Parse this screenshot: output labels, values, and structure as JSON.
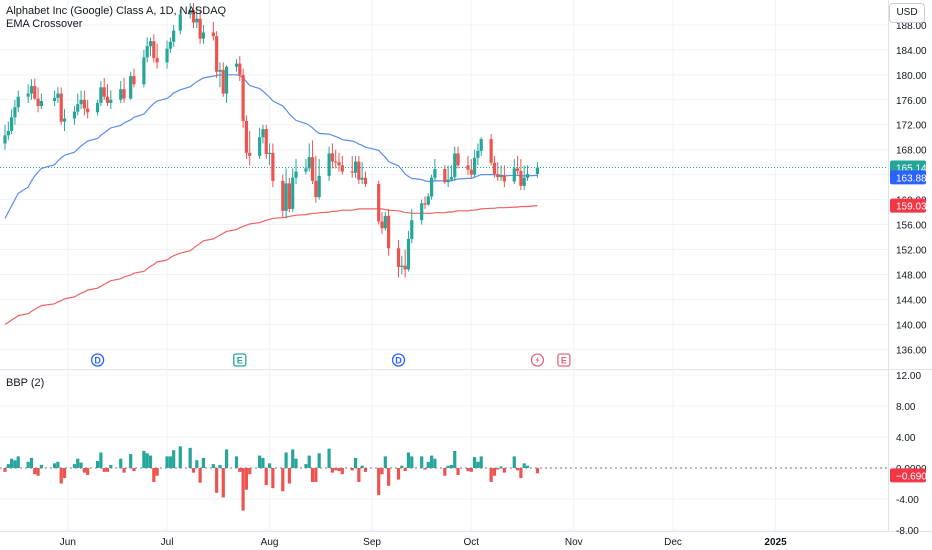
{
  "header": {
    "title": "Alphabet Inc (Google) Class A, 1D, NASDAQ",
    "indicator": "EMA Crossover",
    "currency": "USD"
  },
  "colors": {
    "up": "#26a69a",
    "down": "#ef5350",
    "ema_fast": "#5b8def",
    "ema_slow": "#f06262",
    "grid": "#f0f3fa",
    "axis_text": "#131722"
  },
  "chart_data": [
    {
      "type": "candlestick",
      "title": "Alphabet Inc (Google) Class A, 1D, NASDAQ",
      "ylim": [
        133,
        192
      ],
      "y_ticks": [
        "136.00",
        "140.00",
        "144.00",
        "148.00",
        "152.00",
        "156.00",
        "160.00",
        "164.00",
        "168.00",
        "172.00",
        "176.00",
        "180.00",
        "184.00",
        "188.00"
      ],
      "x_ticks": [
        "Jun",
        "Jul",
        "Aug",
        "Sep",
        "Oct",
        "Nov",
        "Dec",
        "2025"
      ],
      "x": [
        "2024-05-13",
        "2024-05-14",
        "2024-05-15",
        "2024-05-16",
        "2024-05-17",
        "2024-05-20",
        "2024-05-21",
        "2024-05-22",
        "2024-05-23",
        "2024-05-24",
        "2024-05-28",
        "2024-05-29",
        "2024-05-30",
        "2024-05-31",
        "2024-06-03",
        "2024-06-04",
        "2024-06-05",
        "2024-06-06",
        "2024-06-07",
        "2024-06-10",
        "2024-06-11",
        "2024-06-12",
        "2024-06-13",
        "2024-06-14",
        "2024-06-17",
        "2024-06-18",
        "2024-06-20",
        "2024-06-21",
        "2024-06-24",
        "2024-06-25",
        "2024-06-26",
        "2024-06-27",
        "2024-06-28",
        "2024-07-01",
        "2024-07-02",
        "2024-07-03",
        "2024-07-05",
        "2024-07-08",
        "2024-07-09",
        "2024-07-10",
        "2024-07-11",
        "2024-07-12",
        "2024-07-15",
        "2024-07-16",
        "2024-07-17",
        "2024-07-18",
        "2024-07-19",
        "2024-07-22",
        "2024-07-23",
        "2024-07-24",
        "2024-07-25",
        "2024-07-26",
        "2024-07-29",
        "2024-07-30",
        "2024-07-31",
        "2024-08-01",
        "2024-08-02",
        "2024-08-05",
        "2024-08-06",
        "2024-08-07",
        "2024-08-08",
        "2024-08-09",
        "2024-08-12",
        "2024-08-13",
        "2024-08-14",
        "2024-08-15",
        "2024-08-16",
        "2024-08-19",
        "2024-08-20",
        "2024-08-21",
        "2024-08-22",
        "2024-08-23",
        "2024-08-26",
        "2024-08-27",
        "2024-08-28",
        "2024-08-29",
        "2024-08-30",
        "2024-09-03",
        "2024-09-04",
        "2024-09-05",
        "2024-09-06",
        "2024-09-09",
        "2024-09-10",
        "2024-09-11",
        "2024-09-12",
        "2024-09-13",
        "2024-09-16",
        "2024-09-17",
        "2024-09-18",
        "2024-09-19",
        "2024-09-20",
        "2024-09-23",
        "2024-09-24",
        "2024-09-25",
        "2024-09-26",
        "2024-09-27",
        "2024-09-30",
        "2024-10-01",
        "2024-10-02",
        "2024-10-03",
        "2024-10-04",
        "2024-10-07",
        "2024-10-08",
        "2024-10-09",
        "2024-10-10",
        "2024-10-11",
        "2024-10-14",
        "2024-10-15",
        "2024-10-16",
        "2024-10-17",
        "2024-10-18",
        "2024-10-21"
      ],
      "open": [
        169.0,
        170.3,
        171.0,
        173.2,
        174.8,
        176.5,
        177.0,
        178.2,
        176.2,
        175.0,
        175.8,
        176.3,
        177.0,
        172.5,
        173.0,
        174.1,
        175.3,
        176.0,
        174.6,
        174.0,
        175.5,
        178.0,
        176.5,
        175.5,
        176.0,
        177.7,
        176.2,
        179.8,
        178.5,
        182.8,
        184.6,
        185.4,
        182.7,
        182.0,
        184.2,
        185.3,
        187.1,
        189.7,
        190.4,
        188.4,
        189.0,
        185.8,
        186.8,
        186.2,
        180.5,
        180.8,
        177.0,
        181.3,
        181.8,
        180.0,
        172.6,
        167.5,
        167.0,
        170.0,
        171.3,
        167.3,
        167.5,
        163.0,
        158.2,
        162.6,
        158.5,
        163.5,
        164.5,
        165.0,
        166.8,
        163.0,
        160.4,
        163.8,
        167.4,
        166.1,
        166.0,
        165.5,
        164.5,
        164.3,
        166.1,
        163.2,
        163.5,
        162.5,
        156.5,
        155.4,
        157.4,
        152.2,
        149.2,
        149.4,
        148.8,
        153.7,
        156.7,
        159.4,
        159.2,
        160.5,
        163.5,
        164.9,
        162.8,
        163.2,
        163.6,
        167.4,
        165.5,
        164.8,
        164.0,
        166.7,
        167.8,
        169.7,
        165.9,
        164.1,
        163.6,
        163.9,
        162.9,
        165.0,
        164.6,
        162.2,
        163.5,
        164.1
      ],
      "high": [
        172.0,
        172.5,
        174.5,
        176.0,
        177.5,
        178.5,
        179.3,
        179.4,
        178.0,
        177.0,
        177.5,
        178.0,
        178.0,
        174.5,
        175.0,
        177.0,
        177.5,
        177.5,
        176.0,
        176.0,
        179.0,
        179.5,
        178.5,
        177.5,
        179.0,
        179.5,
        180.5,
        181.0,
        184.0,
        186.0,
        186.0,
        186.5,
        185.0,
        185.5,
        186.0,
        188.0,
        190.5,
        191.5,
        191.5,
        191.0,
        190.5,
        188.0,
        188.5,
        187.0,
        182.0,
        182.0,
        181.5,
        182.5,
        183.0,
        181.0,
        173.5,
        171.0,
        171.5,
        172.0,
        172.0,
        169.0,
        169.0,
        164.0,
        165.0,
        163.5,
        165.0,
        166.5,
        166.5,
        169.0,
        169.5,
        167.0,
        166.5,
        168.5,
        169.0,
        168.0,
        167.5,
        167.0,
        167.0,
        167.0,
        167.0,
        166.0,
        164.5,
        163.0,
        158.0,
        158.0,
        158.5,
        153.5,
        151.0,
        152.0,
        155.0,
        158.5,
        160.0,
        160.5,
        161.0,
        164.0,
        166.5,
        165.5,
        165.5,
        165.5,
        168.5,
        168.5,
        167.0,
        166.5,
        168.0,
        169.0,
        170.0,
        170.5,
        167.0,
        166.0,
        165.5,
        165.5,
        166.5,
        167.0,
        166.5,
        165.5,
        165.5,
        166.0
      ],
      "low": [
        168.0,
        169.5,
        170.5,
        172.0,
        174.0,
        175.5,
        176.0,
        176.0,
        174.0,
        174.5,
        175.0,
        175.5,
        172.0,
        171.0,
        172.0,
        173.5,
        174.5,
        173.5,
        173.0,
        173.5,
        175.0,
        176.0,
        175.0,
        174.5,
        175.5,
        175.5,
        176.0,
        178.0,
        178.0,
        182.0,
        183.0,
        182.0,
        181.0,
        181.0,
        183.5,
        184.5,
        186.5,
        189.0,
        187.5,
        187.5,
        185.0,
        185.0,
        185.5,
        179.5,
        178.0,
        176.5,
        175.5,
        180.5,
        179.0,
        171.5,
        166.5,
        165.5,
        166.5,
        169.0,
        166.5,
        165.5,
        162.0,
        157.0,
        157.0,
        158.0,
        158.0,
        162.5,
        164.0,
        164.5,
        162.5,
        159.5,
        160.0,
        163.0,
        165.0,
        165.0,
        164.5,
        164.0,
        163.5,
        163.5,
        162.5,
        162.5,
        162.0,
        156.0,
        154.5,
        155.0,
        151.0,
        147.5,
        148.0,
        147.5,
        148.5,
        153.0,
        156.0,
        158.5,
        159.0,
        160.0,
        163.0,
        162.5,
        162.0,
        163.0,
        163.0,
        165.0,
        164.0,
        163.5,
        163.5,
        165.5,
        167.0,
        165.5,
        163.5,
        163.0,
        163.0,
        162.0,
        162.5,
        164.0,
        161.5,
        161.5,
        163.0,
        163.5
      ],
      "close": [
        170.3,
        171.0,
        173.2,
        174.8,
        176.5,
        177.0,
        178.2,
        176.2,
        175.0,
        175.8,
        176.3,
        177.0,
        172.5,
        173.0,
        174.1,
        175.3,
        176.0,
        174.6,
        174.0,
        175.5,
        178.0,
        176.5,
        175.5,
        176.0,
        177.7,
        176.2,
        179.8,
        178.5,
        182.8,
        184.6,
        185.4,
        182.7,
        182.0,
        184.2,
        185.3,
        187.1,
        189.7,
        190.4,
        188.4,
        189.0,
        185.8,
        186.8,
        186.2,
        180.5,
        180.8,
        177.0,
        181.3,
        181.8,
        180.0,
        172.6,
        167.5,
        167.0,
        170.0,
        171.3,
        167.3,
        167.5,
        163.0,
        158.2,
        162.6,
        158.5,
        163.5,
        164.5,
        165.0,
        166.8,
        163.0,
        160.4,
        163.8,
        167.4,
        166.1,
        166.0,
        165.5,
        164.5,
        164.3,
        166.1,
        163.2,
        163.5,
        162.5,
        156.5,
        155.4,
        157.4,
        152.2,
        149.2,
        149.4,
        148.8,
        153.7,
        156.7,
        159.4,
        159.2,
        160.5,
        163.5,
        164.9,
        162.8,
        163.2,
        163.6,
        167.4,
        165.5,
        164.8,
        164.0,
        166.7,
        167.8,
        169.7,
        165.9,
        164.1,
        163.6,
        163.9,
        162.9,
        165.0,
        164.6,
        162.2,
        163.5,
        164.1,
        165.14
      ],
      "series": [
        {
          "name": "",
          "color": "#5b8def",
          "values": [
            157.0,
            158.0,
            159.0,
            160.0,
            161.0,
            162.0,
            163.0,
            163.8,
            164.4,
            165.0,
            165.6,
            166.2,
            166.7,
            167.1,
            167.6,
            168.1,
            168.6,
            169.0,
            169.4,
            169.8,
            170.3,
            170.7,
            171.1,
            171.5,
            171.9,
            172.3,
            172.8,
            173.2,
            173.7,
            174.3,
            174.9,
            175.4,
            175.8,
            176.2,
            176.6,
            177.1,
            177.6,
            178.1,
            178.5,
            178.9,
            179.2,
            179.5,
            179.8,
            179.9,
            180.0,
            179.9,
            180.0,
            180.0,
            179.9,
            179.5,
            178.9,
            178.3,
            177.8,
            177.4,
            176.9,
            176.4,
            175.8,
            175.0,
            174.4,
            173.7,
            173.2,
            172.7,
            172.2,
            171.9,
            171.5,
            171.0,
            170.6,
            170.5,
            170.3,
            170.1,
            169.9,
            169.6,
            169.4,
            169.2,
            168.9,
            168.7,
            168.4,
            167.9,
            167.3,
            166.8,
            166.1,
            165.4,
            164.8,
            164.1,
            163.7,
            163.4,
            163.2,
            163.0,
            162.9,
            162.9,
            163.0,
            163.0,
            163.0,
            163.0,
            163.2,
            163.3,
            163.4,
            163.4,
            163.6,
            163.8,
            164.0,
            164.0,
            164.0,
            163.9,
            163.9,
            163.8,
            163.9,
            163.9,
            163.8,
            163.8,
            163.8,
            163.88
          ]
        },
        {
          "name": "",
          "color": "#f06262",
          "values": [
            140.0,
            140.3,
            140.7,
            141.0,
            141.4,
            141.7,
            142.1,
            142.4,
            142.7,
            143.0,
            143.3,
            143.6,
            143.8,
            144.1,
            144.4,
            144.7,
            145.0,
            145.2,
            145.5,
            145.8,
            146.1,
            146.4,
            146.7,
            147.0,
            147.3,
            147.6,
            147.9,
            148.2,
            148.5,
            148.9,
            149.3,
            149.6,
            150.0,
            150.3,
            150.7,
            151.0,
            151.4,
            151.8,
            152.2,
            152.6,
            153.0,
            153.4,
            153.7,
            154.0,
            154.3,
            154.6,
            154.9,
            155.2,
            155.5,
            155.7,
            155.9,
            156.1,
            156.3,
            156.5,
            156.7,
            156.8,
            157.0,
            157.1,
            157.2,
            157.3,
            157.4,
            157.5,
            157.6,
            157.7,
            157.8,
            157.8,
            157.9,
            158.0,
            158.1,
            158.1,
            158.2,
            158.3,
            158.3,
            158.4,
            158.5,
            158.5,
            158.5,
            158.5,
            158.5,
            158.4,
            158.3,
            158.2,
            158.1,
            157.9,
            157.9,
            157.8,
            157.8,
            157.8,
            157.8,
            157.8,
            157.9,
            157.9,
            158.0,
            158.0,
            158.1,
            158.2,
            158.2,
            158.3,
            158.3,
            158.4,
            158.5,
            158.6,
            158.6,
            158.7,
            158.7,
            158.7,
            158.8,
            158.8,
            158.9,
            158.9,
            158.9,
            159.03
          ]
        }
      ],
      "last_price": "165.14",
      "ema_fast_value": "163.88",
      "ema_slow_value": "159.03",
      "events": [
        {
          "label": "D",
          "kind": "dividend",
          "date": "2024-06-10"
        },
        {
          "label": "E",
          "kind": "earnings",
          "date": "2024-07-23"
        },
        {
          "label": "D",
          "kind": "dividend",
          "date": "2024-09-09"
        },
        {
          "label": "",
          "kind": "flash",
          "date": "2024-10-21"
        },
        {
          "label": "E",
          "kind": "earnings-upcoming",
          "date": "2024-10-29"
        }
      ]
    },
    {
      "type": "bar",
      "title": "BBP (2)",
      "ylim": [
        -8,
        12
      ],
      "y_ticks": [
        "12.00",
        "8.00",
        "4.00",
        "0.0000",
        "-4.00",
        "-8.00"
      ],
      "x": "same as price chart",
      "values": [
        -0.5,
        0.5,
        1.2,
        1.0,
        1.5,
        0.8,
        1.3,
        -0.8,
        -1.0,
        0.4,
        0.6,
        0.8,
        -2.0,
        -1.3,
        0.5,
        1.2,
        0.7,
        -0.6,
        -0.9,
        0.9,
        2.0,
        -0.5,
        -0.5,
        0.4,
        1.2,
        -0.6,
        1.8,
        -0.4,
        2.2,
        1.9,
        1.6,
        -1.8,
        -1.0,
        1.5,
        1.5,
        2.3,
        2.8,
        2.6,
        -0.6,
        1.0,
        -1.9,
        1.3,
        0.5,
        -3.2,
        0.4,
        -3.8,
        2.4,
        1.5,
        -0.5,
        -5.5,
        -2.8,
        -0.8,
        1.6,
        1.3,
        -2.2,
        0.6,
        -2.6,
        -3.0,
        2.0,
        -2.0,
        2.4,
        1.2,
        0.5,
        1.6,
        -1.8,
        -1.8,
        1.9,
        2.5,
        -0.6,
        -0.3,
        -0.4,
        -0.8,
        -0.3,
        1.3,
        -1.8,
        0.3,
        -0.5,
        -3.5,
        -0.8,
        1.5,
        -2.3,
        -1.5,
        0.3,
        -0.4,
        2.0,
        1.5,
        1.5,
        -0.2,
        0.8,
        1.6,
        1.2,
        -1.0,
        0.3,
        0.4,
        2.2,
        -0.9,
        -0.4,
        -0.5,
        1.4,
        0.8,
        1.5,
        -1.8,
        -1.0,
        -0.2,
        0.2,
        -0.6,
        1.5,
        -0.3,
        -1.3,
        0.6,
        0.3,
        -0.6902
      ],
      "last_value": "−0.6902"
    }
  ]
}
